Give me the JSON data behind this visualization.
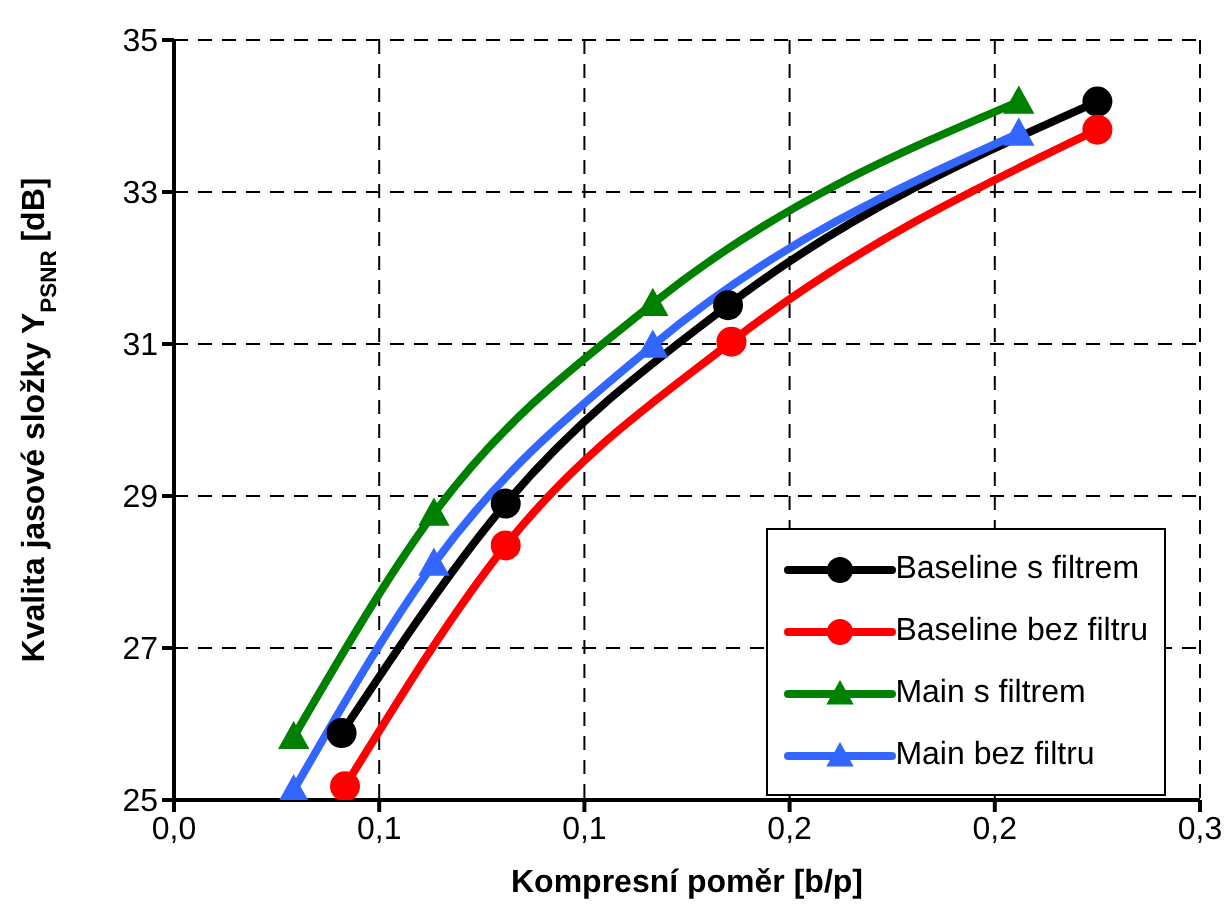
{
  "chart_data": {
    "type": "line",
    "xlabel": "Kompresní poměr [b/p]",
    "ylabel": "Kvalita jasové složky Y$_{PSNR}$ [dB]",
    "xlim": [
      0,
      0.3
    ],
    "xticks": [
      {
        "value": 0,
        "label": "0,0"
      },
      {
        "value": 0.06,
        "label": "0,1"
      },
      {
        "value": 0.12,
        "label": "0,1"
      },
      {
        "value": 0.18,
        "label": "0,2"
      },
      {
        "value": 0.24,
        "label": "0,2"
      },
      {
        "value": 0.3,
        "label": "0,3"
      }
    ],
    "ylim": [
      25,
      35
    ],
    "yticks": [
      25,
      27,
      29,
      31,
      33,
      35
    ],
    "grid": true,
    "legend": "bottom right",
    "line_style": "solid",
    "series": [
      {
        "name": "Baseline s filtrem",
        "color": "#000000",
        "marker": "circle",
        "x": [
          0.049,
          0.097,
          0.162,
          0.27
        ],
        "values": [
          25.88,
          28.9,
          31.51,
          34.19
        ]
      },
      {
        "name": "Baseline bez filtru",
        "color": "#ff0000",
        "marker": "circle",
        "x": [
          0.05,
          0.097,
          0.163,
          0.27
        ],
        "values": [
          25.18,
          28.35,
          31.03,
          33.82
        ]
      },
      {
        "name": "Main s filtrem",
        "color": "#008000",
        "marker": "triangle",
        "x": [
          0.035,
          0.076,
          0.14,
          0.247
        ],
        "values": [
          25.83,
          28.77,
          31.53,
          34.19
        ]
      },
      {
        "name": "Main bez filtru",
        "color": "#3366ff",
        "marker": "triangle",
        "x": [
          0.035,
          0.076,
          0.14,
          0.247
        ],
        "values": [
          25.13,
          28.11,
          30.98,
          33.77
        ]
      }
    ]
  }
}
